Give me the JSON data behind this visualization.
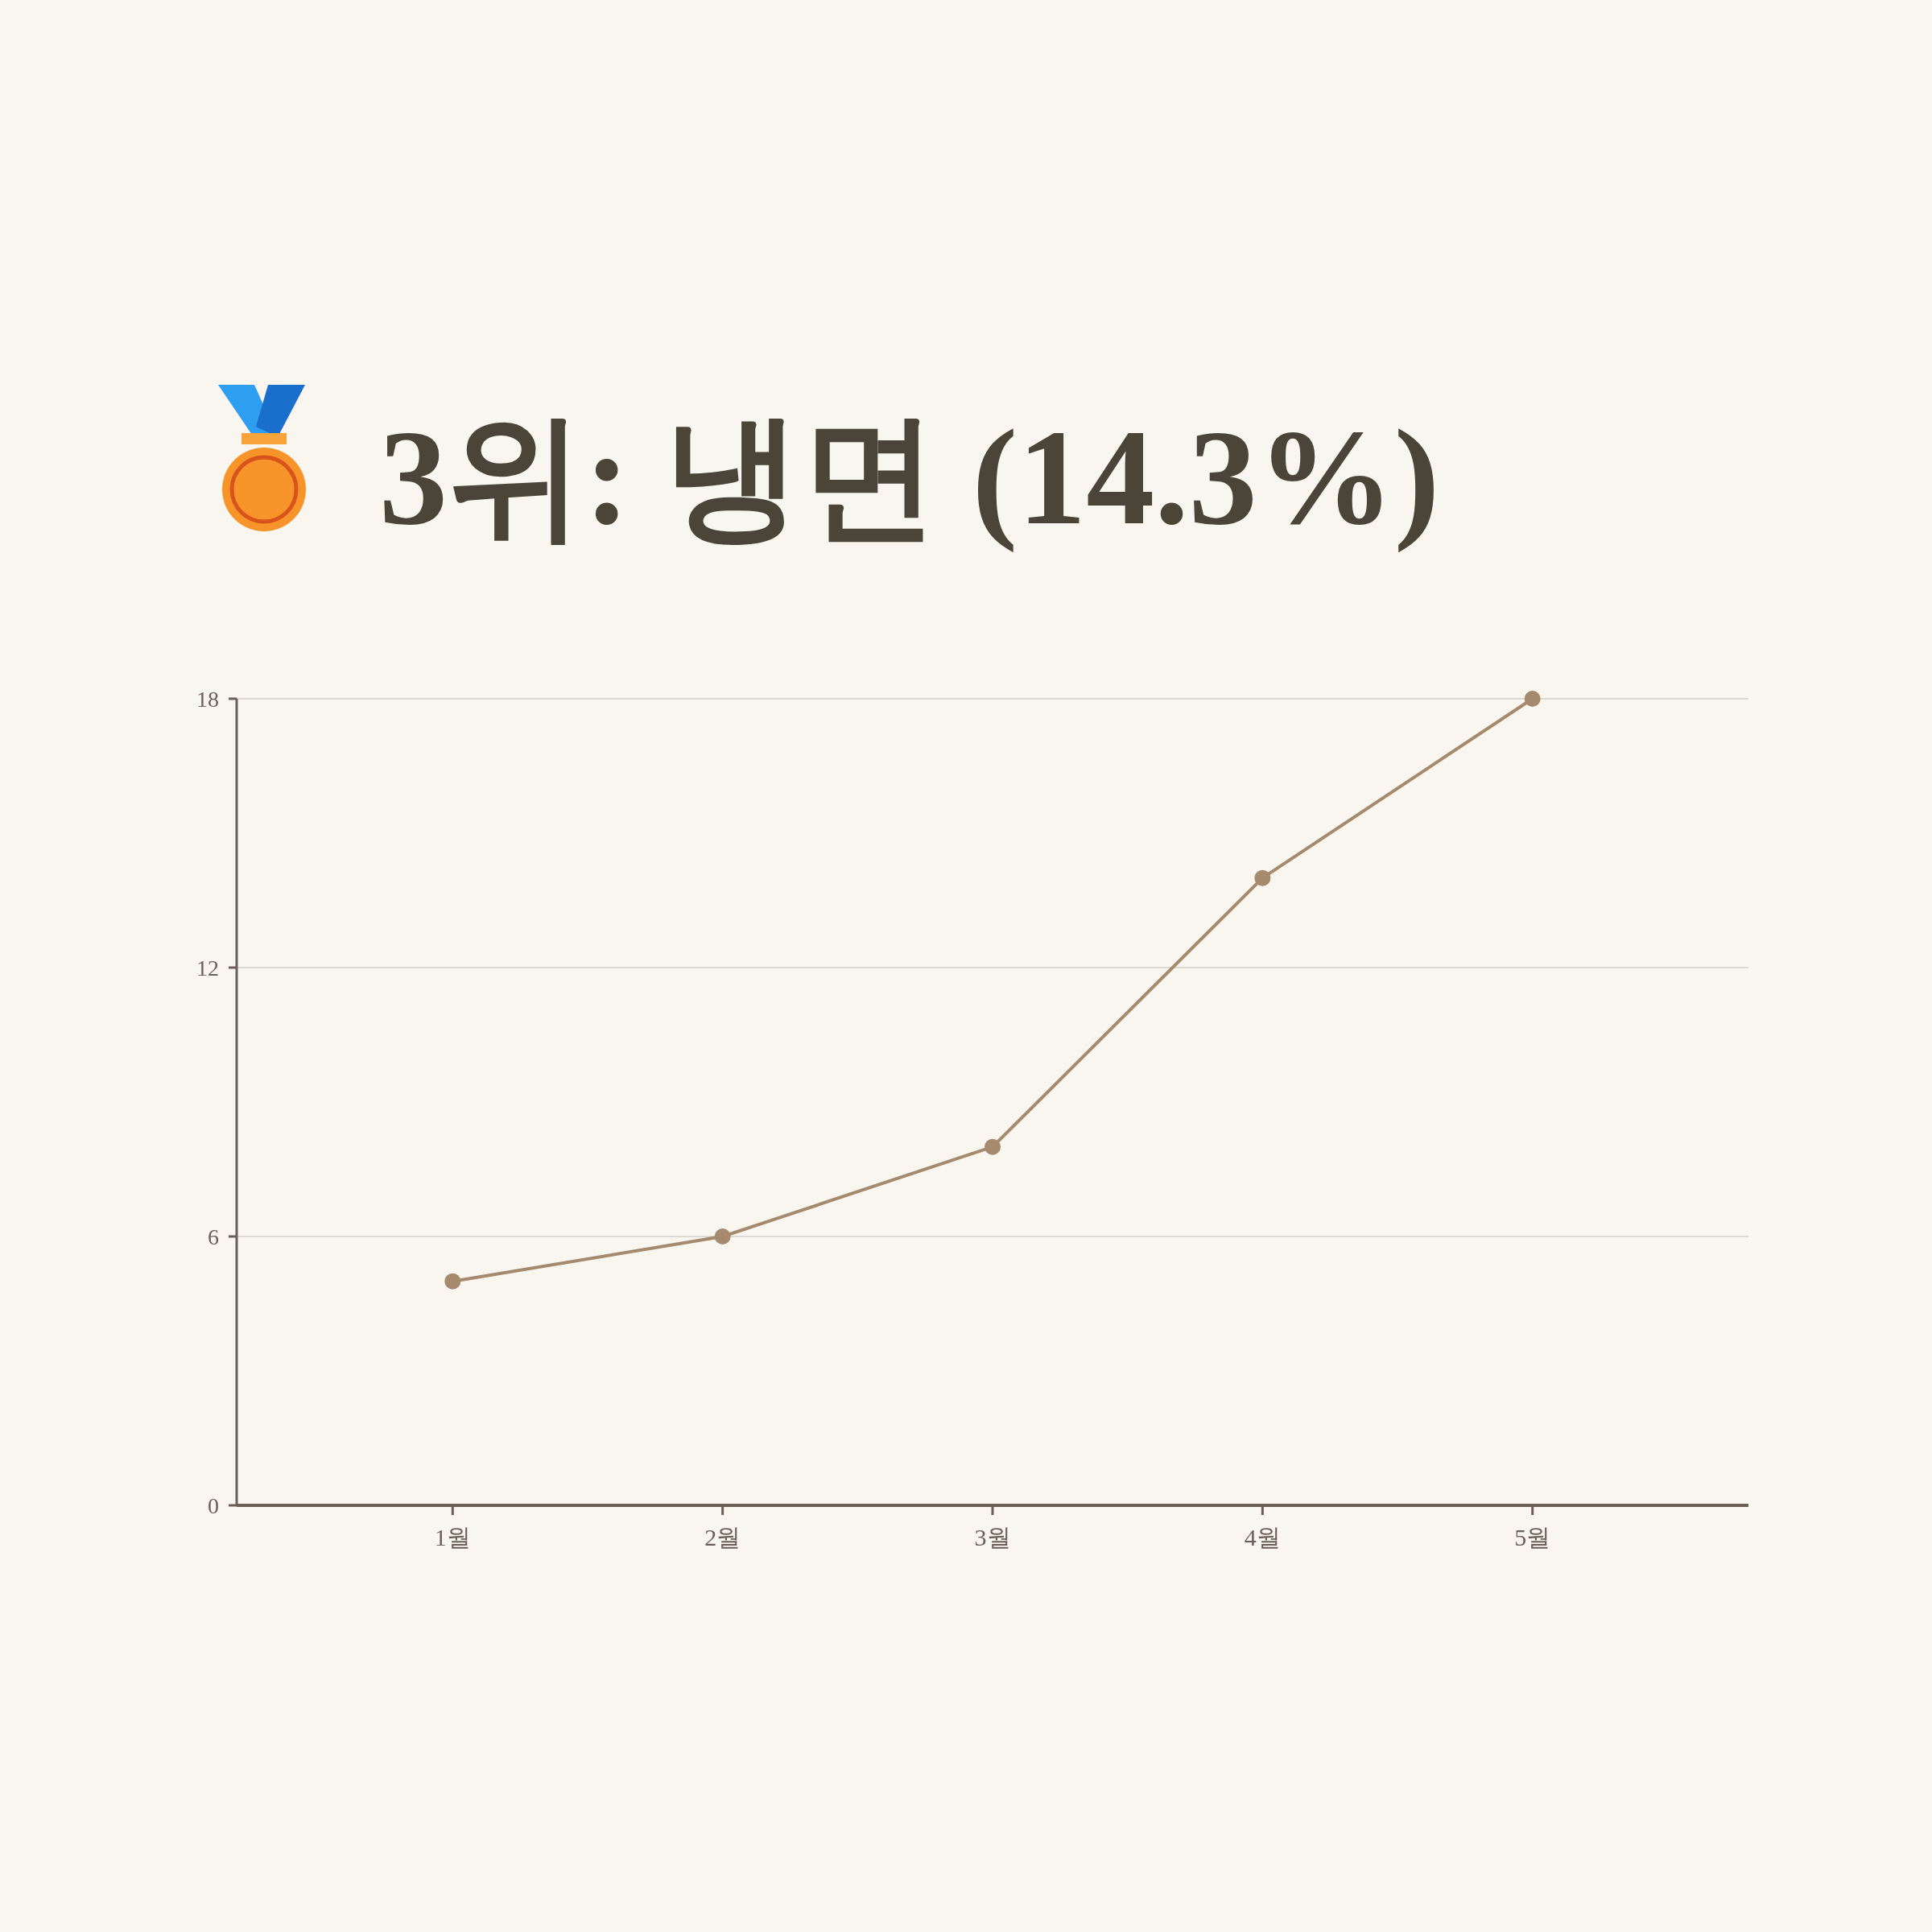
{
  "chart_data": {
    "type": "line",
    "title": "3위: 냉면 (14.3%)",
    "categories": [
      "1월",
      "2월",
      "3월",
      "4월",
      "5월"
    ],
    "series": [
      {
        "color": "#a68a6d",
        "values": [
          5,
          6,
          8,
          14,
          18
        ]
      }
    ],
    "ylim": [
      0,
      18
    ],
    "yticks": [
      0,
      6,
      12,
      18
    ],
    "grid": "y",
    "marker": "circle",
    "line_style": "solid"
  }
}
